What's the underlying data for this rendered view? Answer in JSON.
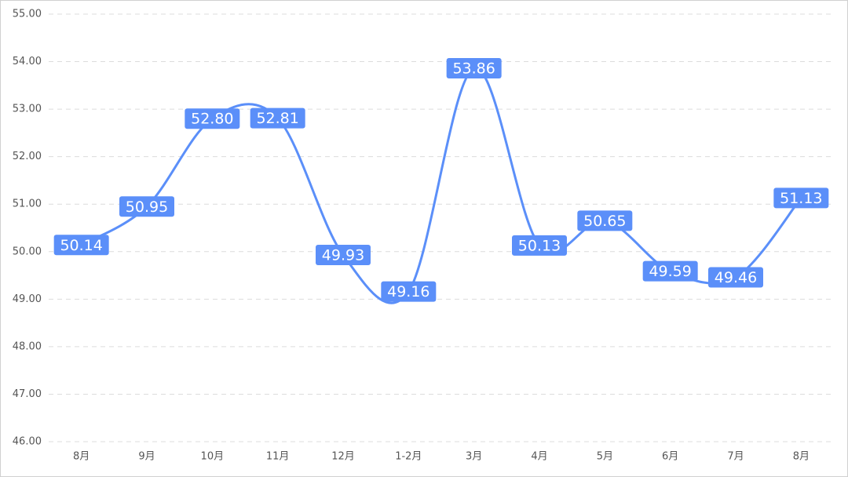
{
  "chart_data": {
    "type": "line",
    "categories": [
      "8月",
      "9月",
      "10月",
      "11月",
      "12月",
      "1-2月",
      "3月",
      "4月",
      "5月",
      "6月",
      "7月",
      "8月"
    ],
    "series": [
      {
        "color": "#5b8ff9",
        "values": [
          50.14,
          50.95,
          52.8,
          52.81,
          49.93,
          49.16,
          53.86,
          50.13,
          50.65,
          49.59,
          49.46,
          51.13
        ],
        "value_labels": [
          "50.14",
          "50.95",
          "52.80",
          "52.81",
          "49.93",
          "49.16",
          "53.86",
          "50.13",
          "50.65",
          "49.59",
          "49.46",
          "51.13"
        ]
      }
    ],
    "ylim": [
      46,
      55
    ],
    "yticks": [
      {
        "value": 46,
        "label": "46.00"
      },
      {
        "value": 47,
        "label": "47.00"
      },
      {
        "value": 48,
        "label": "48.00"
      },
      {
        "value": 49,
        "label": "49.00"
      },
      {
        "value": 50,
        "label": "50.00"
      },
      {
        "value": 51,
        "label": "51.00"
      },
      {
        "value": 52,
        "label": "52.00"
      },
      {
        "value": 53,
        "label": "53.00"
      },
      {
        "value": 54,
        "label": "54.00"
      },
      {
        "value": 55,
        "label": "55.00"
      }
    ],
    "grid": true
  }
}
